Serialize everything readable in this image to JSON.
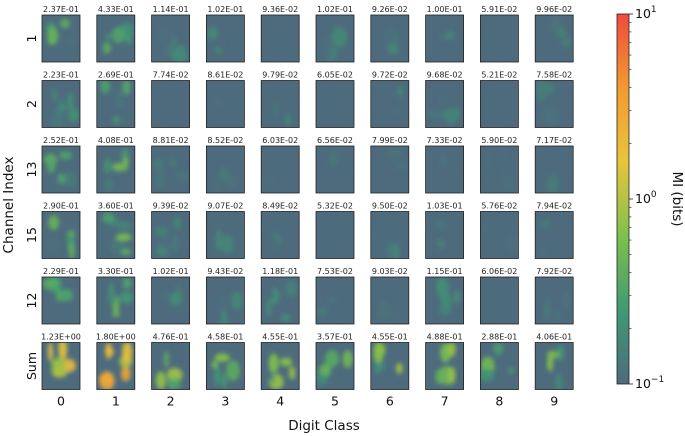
{
  "chart_data": {
    "type": "heatmap",
    "xlabel": "Digit Class",
    "ylabel": "Channel Index",
    "x_categories": [
      "0",
      "1",
      "2",
      "3",
      "4",
      "5",
      "6",
      "7",
      "8",
      "9"
    ],
    "y_categories": [
      "1",
      "2",
      "13",
      "15",
      "12",
      "Sum"
    ],
    "cell_values": [
      [
        "2.37E-01",
        "4.33E-01",
        "1.14E-01",
        "1.02E-01",
        "9.36E-02",
        "1.02E-01",
        "9.26E-02",
        "1.00E-01",
        "5.91E-02",
        "9.96E-02"
      ],
      [
        "2.23E-01",
        "2.69E-01",
        "7.74E-02",
        "8.61E-02",
        "9.79E-02",
        "6.05E-02",
        "9.72E-02",
        "9.68E-02",
        "5.21E-02",
        "7.58E-02"
      ],
      [
        "2.52E-01",
        "4.08E-01",
        "8.81E-02",
        "8.52E-02",
        "6.03E-02",
        "6.56E-02",
        "7.99E-02",
        "7.33E-02",
        "5.90E-02",
        "7.17E-02"
      ],
      [
        "2.90E-01",
        "3.60E-01",
        "9.39E-02",
        "9.07E-02",
        "8.49E-02",
        "5.32E-02",
        "9.50E-02",
        "1.03E-01",
        "5.76E-02",
        "7.94E-02"
      ],
      [
        "2.29E-01",
        "3.30E-01",
        "1.02E-01",
        "9.43E-02",
        "1.18E-01",
        "7.53E-02",
        "9.03E-02",
        "1.15E-01",
        "6.06E-02",
        "7.92E-02"
      ],
      [
        "1.23E+00",
        "1.80E+00",
        "4.76E-01",
        "4.58E-01",
        "4.55E-01",
        "3.57E-01",
        "4.55E-01",
        "4.88E-01",
        "2.88E-01",
        "4.06E-01"
      ]
    ],
    "colorbar": {
      "label": "MI (bits)",
      "scale": "log",
      "range": [
        0.1,
        10
      ],
      "tick_base": "10",
      "tick_exponents": [
        "1",
        "0",
        "−1"
      ],
      "colors": [
        "#4d6b7d",
        "#3f9a73",
        "#7fc14a",
        "#e8c53d",
        "#f29a30",
        "#f04b3c"
      ]
    }
  }
}
